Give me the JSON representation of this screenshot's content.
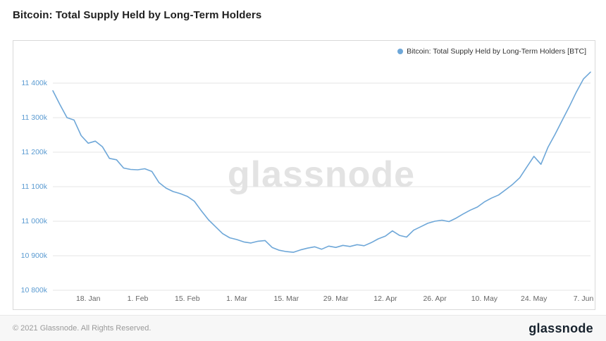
{
  "page": {
    "title": "Bitcoin: Total Supply Held by Long-Term Holders",
    "watermark": "glassnode",
    "footer": {
      "copyright": "© 2021 Glassnode. All Rights Reserved.",
      "brand": "glassnode"
    }
  },
  "legend": {
    "label": "Bitcoin: Total Supply Held by Long-Term Holders [BTC]"
  },
  "colors": {
    "accent": "#6ea7d8",
    "y_label": "#5b9bd1",
    "x_label": "#666666",
    "grid": "#e6e6e6",
    "border": "#d9d9d9",
    "watermark": "#e3e3e3",
    "footer_bg": "#f7f7f7",
    "footer_text": "#9a9a9a",
    "logo": "#17222d",
    "title": "#1f1f1f"
  },
  "chart_data": {
    "type": "line",
    "title": "Bitcoin: Total Supply Held by Long-Term Holders",
    "unit": "BTC",
    "values_in": "thousand BTC (k)",
    "grid": "horizontal",
    "legend_position": "top-right",
    "ylim": [
      10800,
      11460
    ],
    "y_ticks": [
      {
        "value": 10800,
        "label": "10 800k"
      },
      {
        "value": 10900,
        "label": "10 900k"
      },
      {
        "value": 11000,
        "label": "11 000k"
      },
      {
        "value": 11100,
        "label": "11 100k"
      },
      {
        "value": 11200,
        "label": "11 200k"
      },
      {
        "value": 11300,
        "label": "11 300k"
      },
      {
        "value": 11400,
        "label": "11 400k"
      }
    ],
    "x_domain_days": [
      0,
      152
    ],
    "x_ticks": [
      {
        "day": 10,
        "label": "18. Jan"
      },
      {
        "day": 24,
        "label": "1. Feb"
      },
      {
        "day": 38,
        "label": "15. Feb"
      },
      {
        "day": 52,
        "label": "1. Mar"
      },
      {
        "day": 66,
        "label": "15. Mar"
      },
      {
        "day": 80,
        "label": "29. Mar"
      },
      {
        "day": 94,
        "label": "12. Apr"
      },
      {
        "day": 108,
        "label": "26. Apr"
      },
      {
        "day": 122,
        "label": "10. May"
      },
      {
        "day": 136,
        "label": "24. May"
      },
      {
        "day": 150,
        "label": "7. Jun"
      }
    ],
    "series": [
      {
        "name": "Bitcoin: Total Supply Held by Long-Term Holders [BTC]",
        "interval_days": 2,
        "points": [
          [
            "8 Jan",
            11378
          ],
          [
            "10 Jan",
            11338
          ],
          [
            "12 Jan",
            11300
          ],
          [
            "14 Jan",
            11293
          ],
          [
            "16 Jan",
            11248
          ],
          [
            "18 Jan",
            11226
          ],
          [
            "20 Jan",
            11232
          ],
          [
            "22 Jan",
            11216
          ],
          [
            "24 Jan",
            11182
          ],
          [
            "26 Jan",
            11178
          ],
          [
            "28 Jan",
            11154
          ],
          [
            "30 Jan",
            11150
          ],
          [
            "1 Feb",
            11149
          ],
          [
            "3 Feb",
            11152
          ],
          [
            "5 Feb",
            11144
          ],
          [
            "7 Feb",
            11112
          ],
          [
            "9 Feb",
            11096
          ],
          [
            "11 Feb",
            11086
          ],
          [
            "13 Feb",
            11080
          ],
          [
            "15 Feb",
            11072
          ],
          [
            "17 Feb",
            11058
          ],
          [
            "19 Feb",
            11030
          ],
          [
            "21 Feb",
            11004
          ],
          [
            "23 Feb",
            10984
          ],
          [
            "25 Feb",
            10964
          ],
          [
            "27 Feb",
            10952
          ],
          [
            "1 Mar",
            10947
          ],
          [
            "3 Mar",
            10940
          ],
          [
            "5 Mar",
            10937
          ],
          [
            "7 Mar",
            10942
          ],
          [
            "9 Mar",
            10944
          ],
          [
            "11 Mar",
            10924
          ],
          [
            "13 Mar",
            10916
          ],
          [
            "15 Mar",
            10912
          ],
          [
            "17 Mar",
            10910
          ],
          [
            "19 Mar",
            10917
          ],
          [
            "21 Mar",
            10922
          ],
          [
            "23 Mar",
            10926
          ],
          [
            "25 Mar",
            10919
          ],
          [
            "27 Mar",
            10928
          ],
          [
            "29 Mar",
            10924
          ],
          [
            "31 Mar",
            10930
          ],
          [
            "2 Apr",
            10927
          ],
          [
            "4 Apr",
            10932
          ],
          [
            "6 Apr",
            10929
          ],
          [
            "8 Apr",
            10938
          ],
          [
            "10 Apr",
            10949
          ],
          [
            "12 Apr",
            10957
          ],
          [
            "14 Apr",
            10972
          ],
          [
            "16 Apr",
            10959
          ],
          [
            "18 Apr",
            10954
          ],
          [
            "20 Apr",
            10974
          ],
          [
            "22 Apr",
            10984
          ],
          [
            "24 Apr",
            10994
          ],
          [
            "26 Apr",
            11000
          ],
          [
            "28 Apr",
            11003
          ],
          [
            "30 Apr",
            10999
          ],
          [
            "2 May",
            11009
          ],
          [
            "4 May",
            11021
          ],
          [
            "6 May",
            11032
          ],
          [
            "8 May",
            11041
          ],
          [
            "10 May",
            11056
          ],
          [
            "12 May",
            11067
          ],
          [
            "14 May",
            11076
          ],
          [
            "16 May",
            11091
          ],
          [
            "18 May",
            11107
          ],
          [
            "20 May",
            11126
          ],
          [
            "22 May",
            11157
          ],
          [
            "24 May",
            11188
          ],
          [
            "26 May",
            11165
          ],
          [
            "28 May",
            11215
          ],
          [
            "30 May",
            11252
          ],
          [
            "1 Jun",
            11292
          ],
          [
            "3 Jun",
            11332
          ],
          [
            "5 Jun",
            11374
          ],
          [
            "7 Jun",
            11412
          ],
          [
            "9 Jun",
            11432
          ]
        ]
      }
    ]
  }
}
